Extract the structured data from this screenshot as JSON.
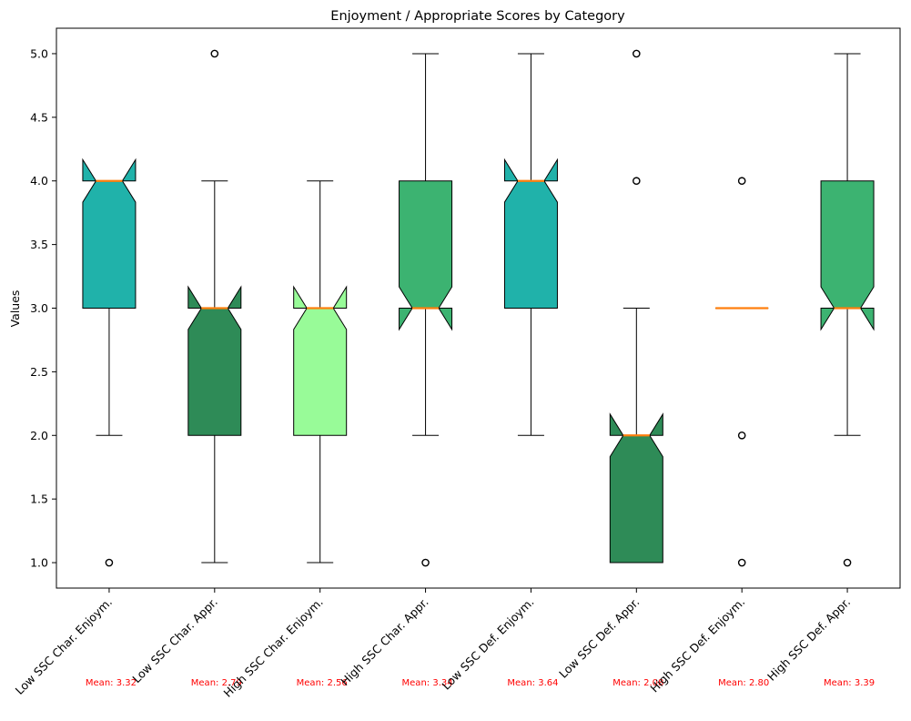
{
  "chart_data": {
    "type": "box",
    "title": "Enjoyment / Appropriate Scores by Category",
    "ylabel": "Values",
    "xlabel": "",
    "ylim": [
      0.8,
      5.2
    ],
    "yticks": [
      "1.0",
      "1.5",
      "2.0",
      "2.5",
      "3.0",
      "3.5",
      "4.0",
      "4.5",
      "5.0"
    ],
    "notched": true,
    "grid": false,
    "median_color": "#ff7f0e",
    "mean_label_color": "#ff0000",
    "boxes": [
      {
        "category": "Low SSC Char. Enjoym.",
        "q1": 3.0,
        "median": 4.0,
        "q3": 4.0,
        "notch_low": 3.833,
        "notch_high": 4.167,
        "whisker_low": 2.0,
        "whisker_high": 4.0,
        "outliers": [
          1.0
        ],
        "mean_label": "Mean: 3.32",
        "color": "#20b2aa"
      },
      {
        "category": "Low SSC Char. Appr.",
        "q1": 2.0,
        "median": 3.0,
        "q3": 3.0,
        "notch_low": 2.833,
        "notch_high": 3.167,
        "whisker_low": 1.0,
        "whisker_high": 4.0,
        "outliers": [
          5.0
        ],
        "mean_label": "Mean: 2.79",
        "color": "#2e8b57"
      },
      {
        "category": "High SSC Char. Enjoym.",
        "q1": 2.0,
        "median": 3.0,
        "q3": 3.0,
        "notch_low": 2.833,
        "notch_high": 3.167,
        "whisker_low": 1.0,
        "whisker_high": 4.0,
        "outliers": [],
        "mean_label": "Mean: 2.56",
        "color": "#98fb98"
      },
      {
        "category": "High SSC Char. Appr.",
        "q1": 3.0,
        "median": 3.0,
        "q3": 4.0,
        "notch_low": 2.833,
        "notch_high": 3.167,
        "whisker_low": 2.0,
        "whisker_high": 5.0,
        "outliers": [
          1.0
        ],
        "mean_label": "Mean: 3.34",
        "color": "#3cb371"
      },
      {
        "category": "Low SSC Def. Enjoym.",
        "q1": 3.0,
        "median": 4.0,
        "q3": 4.0,
        "notch_low": 3.833,
        "notch_high": 4.167,
        "whisker_low": 2.0,
        "whisker_high": 5.0,
        "outliers": [],
        "mean_label": "Mean: 3.64",
        "color": "#20b2aa"
      },
      {
        "category": "Low SSC Def. Appr.",
        "q1": 1.0,
        "median": 2.0,
        "q3": 2.0,
        "notch_low": 1.833,
        "notch_high": 2.167,
        "whisker_low": 1.0,
        "whisker_high": 3.0,
        "outliers": [
          4.0,
          5.0
        ],
        "mean_label": "Mean: 2.08",
        "color": "#2e8b57"
      },
      {
        "category": "High SSC Def. Enjoym.",
        "q1": 3.0,
        "median": 3.0,
        "q3": 3.0,
        "notch_low": 3.0,
        "notch_high": 3.0,
        "whisker_low": 3.0,
        "whisker_high": 3.0,
        "outliers": [
          1.0,
          2.0,
          4.0
        ],
        "mean_label": "Mean: 2.80",
        "color": "#98fb98"
      },
      {
        "category": "High SSC Def. Appr.",
        "q1": 3.0,
        "median": 3.0,
        "q3": 4.0,
        "notch_low": 2.833,
        "notch_high": 3.167,
        "whisker_low": 2.0,
        "whisker_high": 5.0,
        "outliers": [
          1.0
        ],
        "mean_label": "Mean: 3.39",
        "color": "#3cb371"
      }
    ]
  }
}
